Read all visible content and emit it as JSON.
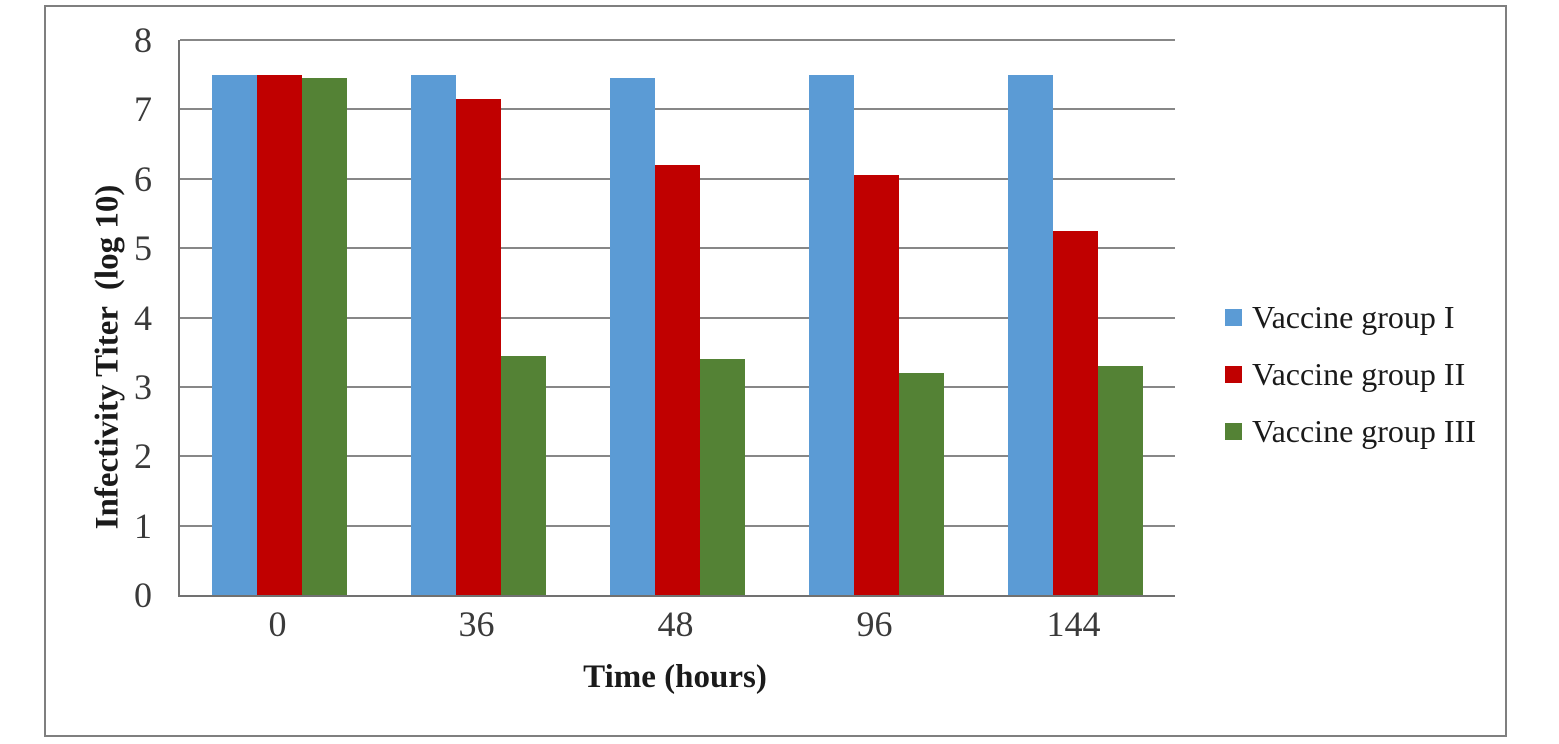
{
  "figure": {
    "background_color": "#ffffff",
    "border_color": "#7f7f7f",
    "gridline_color": "#878787",
    "axis_line_color": "#717171",
    "text_color": "#1a1a1a",
    "tick_color": "#3a3a3a"
  },
  "chart_data": {
    "type": "bar",
    "title": "",
    "xlabel": "Time (hours)",
    "ylabel": "Infectivity Titer  (log 10)",
    "categories": [
      "0",
      "36",
      "48",
      "96",
      "144"
    ],
    "series": [
      {
        "name": "Vaccine group I",
        "color": "#5B9BD5",
        "values": [
          7.5,
          7.5,
          7.45,
          7.5,
          7.5
        ]
      },
      {
        "name": "Vaccine group II",
        "color": "#C00000",
        "values": [
          7.5,
          7.15,
          6.2,
          6.05,
          5.25
        ]
      },
      {
        "name": "Vaccine group III",
        "color": "#548235",
        "values": [
          7.45,
          3.45,
          3.4,
          3.2,
          3.3
        ]
      }
    ],
    "ylim": [
      0,
      8
    ],
    "yticks": [
      0,
      1,
      2,
      3,
      4,
      5,
      6,
      7,
      8
    ],
    "grid": true,
    "legend_position": "right"
  }
}
